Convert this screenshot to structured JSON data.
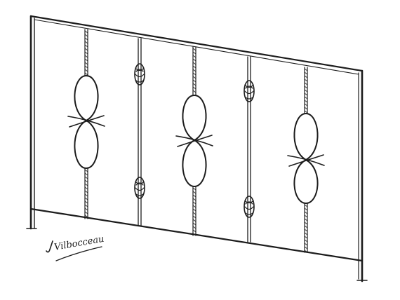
{
  "drawing": {
    "subject": "",
    "signature": "Vilbocceau"
  },
  "colors": {
    "ink": "#1c1c1c",
    "paper": "#ffffff"
  }
}
